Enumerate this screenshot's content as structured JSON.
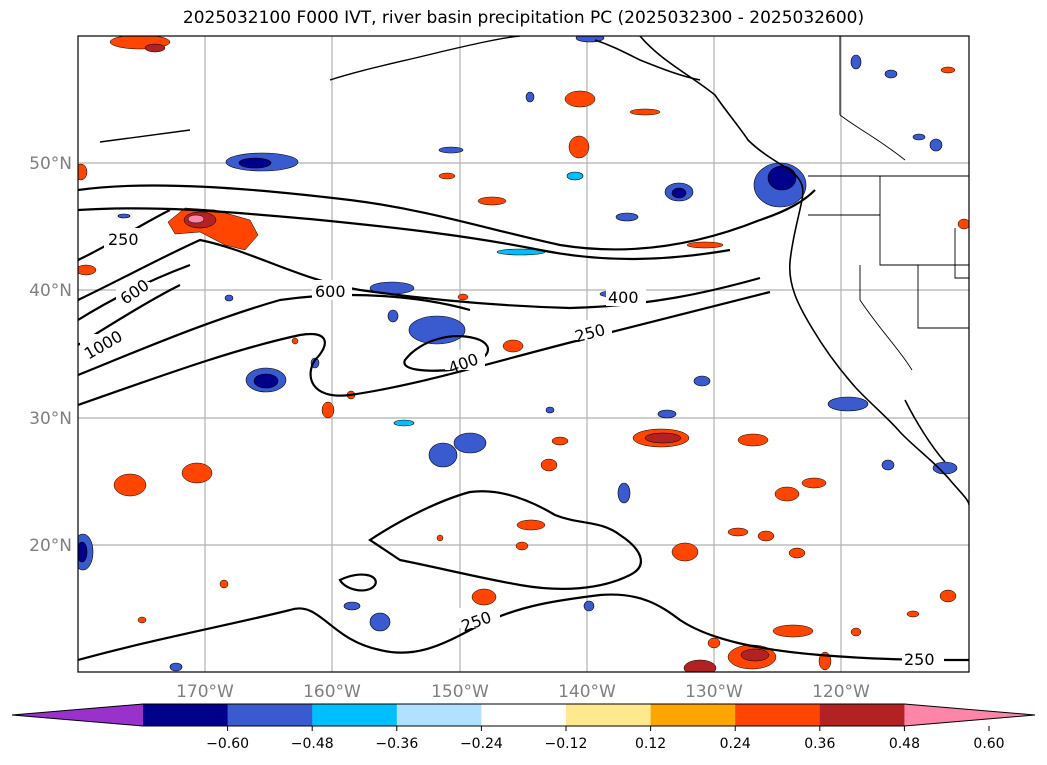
{
  "title": "2025032100 F000 IVT, river basin precipitation PC (2025032300 - 2025032600)",
  "lat_labels": [
    "50°N",
    "40°N",
    "30°N",
    "20°N"
  ],
  "lon_labels": [
    "170°W",
    "160°W",
    "150°W",
    "140°W",
    "130°W",
    "120°W"
  ],
  "contour_labels": [
    "250",
    "600",
    "1000",
    "600",
    "400",
    "400",
    "250",
    "250",
    "250"
  ],
  "colorbar": {
    "ticks": [
      "−0.60",
      "−0.48",
      "−0.36",
      "−0.24",
      "−0.12",
      "0.12",
      "0.24",
      "0.36",
      "0.48",
      "0.60"
    ],
    "colors": [
      "#9932cc",
      "#00008b",
      "#3a5bd0",
      "#00bfff",
      "#b0e2ff",
      "#ffffff",
      "#ffe98f",
      "#ffa500",
      "#ff4500",
      "#b22222",
      "#ff85a8"
    ]
  },
  "legend_colors": {
    "neg_deep": "#00008b",
    "neg_mid": "#3a5bd0",
    "neg_light": "#00bfff",
    "pos_light": "#ffe98f",
    "pos_mid": "#ffa500",
    "pos_strong": "#ff4500",
    "pos_deep": "#b22222",
    "pos_pink": "#ff85a8"
  }
}
